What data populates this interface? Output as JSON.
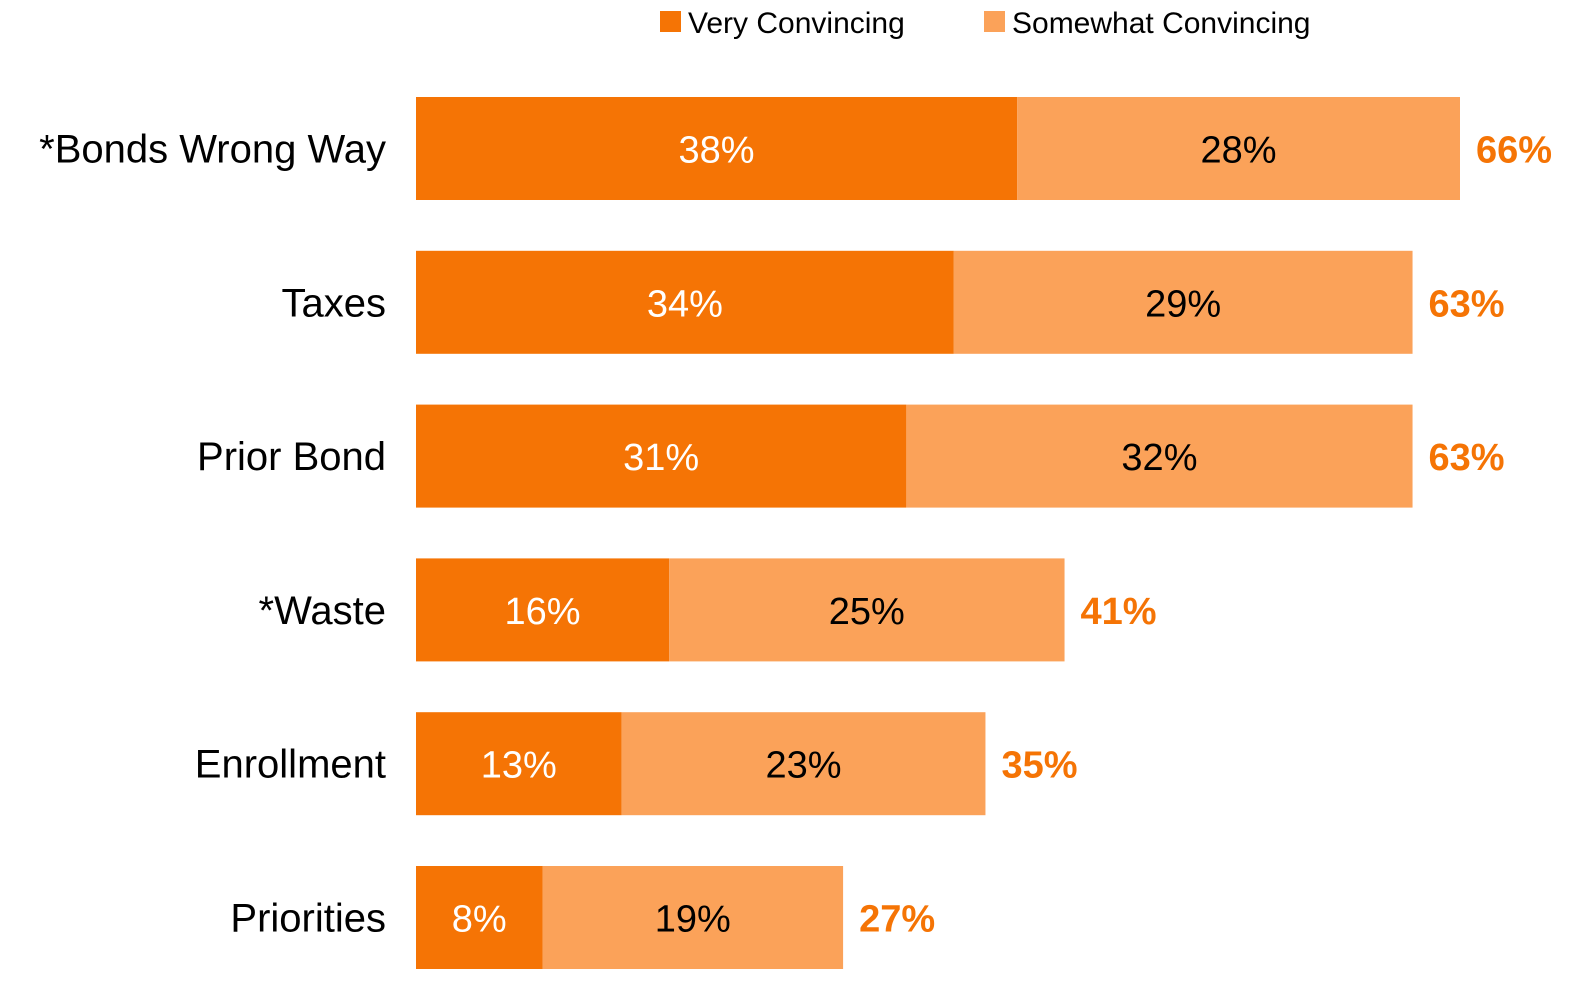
{
  "chart_data": {
    "type": "bar",
    "orientation": "horizontal",
    "stacked": true,
    "categories": [
      "*Bonds Wrong Way",
      "Taxes",
      "Prior Bond",
      "*Waste",
      "Enrollment",
      "Priorities"
    ],
    "series": [
      {
        "name": "Very Convincing",
        "color": "#F57405",
        "label_color": "#FFFFFF",
        "values": [
          38,
          34,
          31,
          16,
          13,
          8
        ],
        "labels": [
          "38%",
          "34%",
          "31%",
          "16%",
          "13%",
          "8%"
        ]
      },
      {
        "name": "Somewhat Convincing",
        "color": "#FBA259",
        "label_color": "#000000",
        "values": [
          28,
          29,
          32,
          25,
          23,
          19
        ],
        "labels": [
          "28%",
          "29%",
          "32%",
          "25%",
          "23%",
          "19%"
        ]
      }
    ],
    "totals": {
      "color": "#F57405",
      "values": [
        66,
        63,
        63,
        41,
        35,
        27
      ],
      "labels": [
        "66%",
        "63%",
        "63%",
        "41%",
        "35%",
        "27%"
      ]
    },
    "xlim": [
      0,
      66
    ],
    "legend": "top-right",
    "grid": false,
    "title": "",
    "xlabel": "",
    "ylabel": ""
  }
}
